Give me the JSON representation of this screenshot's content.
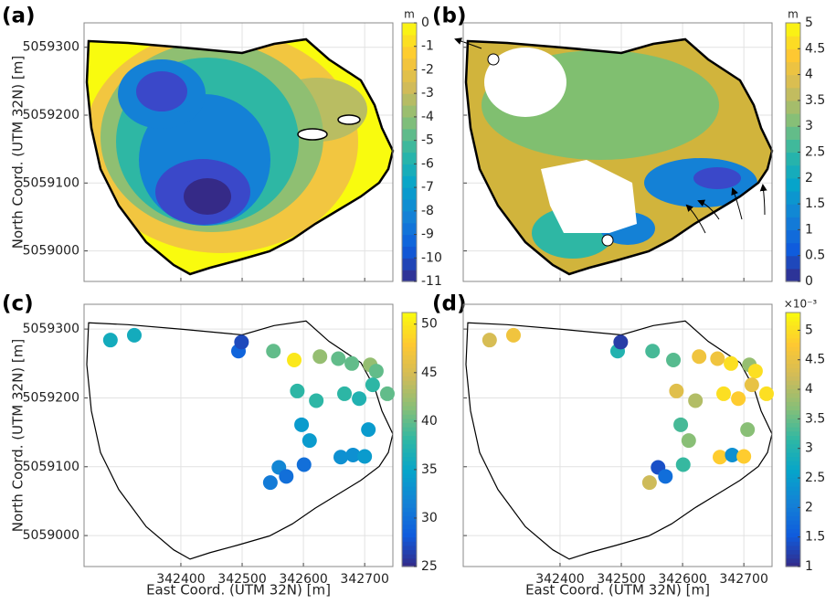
{
  "colormap": [
    "#352a87",
    "#0f5cdd",
    "#1481d6",
    "#06a4ca",
    "#2eb7a4",
    "#87bf77",
    "#d1bb59",
    "#fec832",
    "#f9fb0e"
  ],
  "chart_data": [
    {
      "type": "contour",
      "panel_label": "(a)",
      "ylabel": "North Coord. (UTM 32N) [m]",
      "xlim": [
        342242,
        342746
      ],
      "ylim": [
        5058955,
        5059336
      ],
      "xticks": [
        342400,
        342500,
        342600,
        342700
      ],
      "yticks": [
        5059000,
        5059100,
        5059200,
        5059300
      ],
      "xtick_labels": false,
      "ytick_labels": true,
      "grid": true,
      "colorbar_label": "m",
      "clim": [
        -11,
        0
      ],
      "cticks": [
        -11,
        -10,
        -9,
        -8,
        -7,
        -6,
        -5,
        -4,
        -3,
        -2,
        -1,
        0
      ]
    },
    {
      "type": "contour",
      "panel_label": "(b)",
      "xlim": [
        342242,
        342746
      ],
      "ylim": [
        5058955,
        5059336
      ],
      "xticks": [
        342400,
        342500,
        342600,
        342700
      ],
      "yticks": [
        5059000,
        5059100,
        5059200,
        5059300
      ],
      "xtick_labels": false,
      "ytick_labels": false,
      "grid": true,
      "colorbar_label": "m",
      "clim": [
        0,
        5
      ],
      "cticks": [
        0,
        0.5,
        1,
        1.5,
        2,
        2.5,
        3,
        3.5,
        4,
        4.5,
        5
      ]
    },
    {
      "type": "scatter",
      "panel_label": "(c)",
      "ylabel": "North Coord. (UTM 32N) [m]",
      "xlabel": "East Coord. (UTM 32N) [m]",
      "xlim": [
        342242,
        342746
      ],
      "ylim": [
        5058955,
        5059336
      ],
      "xticks": [
        342400,
        342500,
        342600,
        342700
      ],
      "yticks": [
        5059000,
        5059100,
        5059200,
        5059300
      ],
      "xtick_labels": true,
      "ytick_labels": true,
      "grid": true,
      "clim": [
        25,
        51.2
      ],
      "cticks": [
        25,
        30,
        35,
        40,
        45,
        50
      ],
      "x": [
        342285,
        342324,
        342494,
        342499,
        342551,
        342585,
        342627,
        342657,
        342679,
        342709,
        342719,
        342590,
        342621,
        342667,
        342691,
        342713,
        342737,
        342597,
        342610,
        342706,
        342661,
        342681,
        342700,
        342560,
        342601,
        342546,
        342572
      ],
      "y": [
        5059284,
        5059291,
        5059268,
        5059281,
        5059268,
        5059255,
        5059260,
        5059257,
        5059250,
        5059248,
        5059239,
        5059210,
        5059196,
        5059206,
        5059199,
        5059219,
        5059206,
        5059161,
        5059138,
        5059154,
        5059114,
        5059117,
        5059115,
        5059099,
        5059103,
        5059077,
        5059086
      ],
      "values": [
        36,
        36,
        29,
        27,
        40,
        50,
        42,
        40,
        40,
        42,
        40,
        38,
        38,
        38,
        37,
        38,
        40,
        34,
        34,
        34,
        33,
        33,
        34,
        32,
        30,
        31,
        30
      ]
    },
    {
      "type": "scatter",
      "panel_label": "(d)",
      "xlabel": "East Coord. (UTM 32N) [m]",
      "xlim": [
        342242,
        342746
      ],
      "ylim": [
        5058955,
        5059336
      ],
      "xticks": [
        342400,
        342500,
        342600,
        342700
      ],
      "yticks": [
        5059000,
        5059100,
        5059200,
        5059300
      ],
      "xtick_labels": true,
      "ytick_labels": false,
      "grid": true,
      "colorbar_label": "×10⁻³",
      "clim": [
        1,
        5.3
      ],
      "cticks": [
        1,
        1.5,
        2,
        2.5,
        3,
        3.5,
        4,
        4.5,
        5
      ],
      "x": [
        342285,
        342324,
        342494,
        342499,
        342551,
        342585,
        342627,
        342657,
        342679,
        342709,
        342719,
        342590,
        342621,
        342667,
        342691,
        342713,
        342737,
        342597,
        342610,
        342706,
        342661,
        342681,
        342700,
        342560,
        342601,
        342546,
        342572
      ],
      "y": [
        5059284,
        5059291,
        5059268,
        5059281,
        5059268,
        5059255,
        5059260,
        5059257,
        5059250,
        5059248,
        5059239,
        5059210,
        5059196,
        5059206,
        5059199,
        5059219,
        5059206,
        5059161,
        5059138,
        5059154,
        5059114,
        5059117,
        5059115,
        5059099,
        5059103,
        5059077,
        5059086
      ],
      "values": [
        4.3,
        4.6,
        3.0,
        1.2,
        3.3,
        3.4,
        4.6,
        4.6,
        5.0,
        3.8,
        5.0,
        4.4,
        4.0,
        5.0,
        4.8,
        4.5,
        5.0,
        3.3,
        3.7,
        3.7,
        4.8,
        2.3,
        4.8,
        1.4,
        3.2,
        4.2,
        1.8
      ]
    }
  ]
}
